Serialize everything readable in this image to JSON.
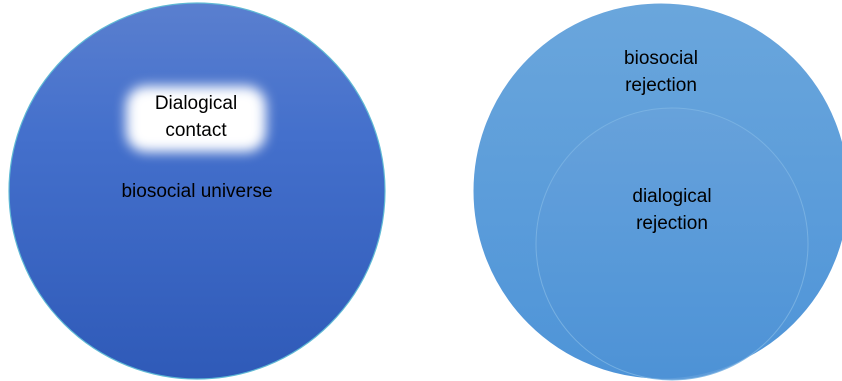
{
  "left_diagram": {
    "outer_label": "biosocial universe",
    "inner_label": "Dialogical contact",
    "fill_color": "#3a66c4"
  },
  "right_diagram": {
    "outer_label": "biosocial rejection",
    "inner_label": "dialogical rejection",
    "fill_color": "#5a9ad9"
  }
}
